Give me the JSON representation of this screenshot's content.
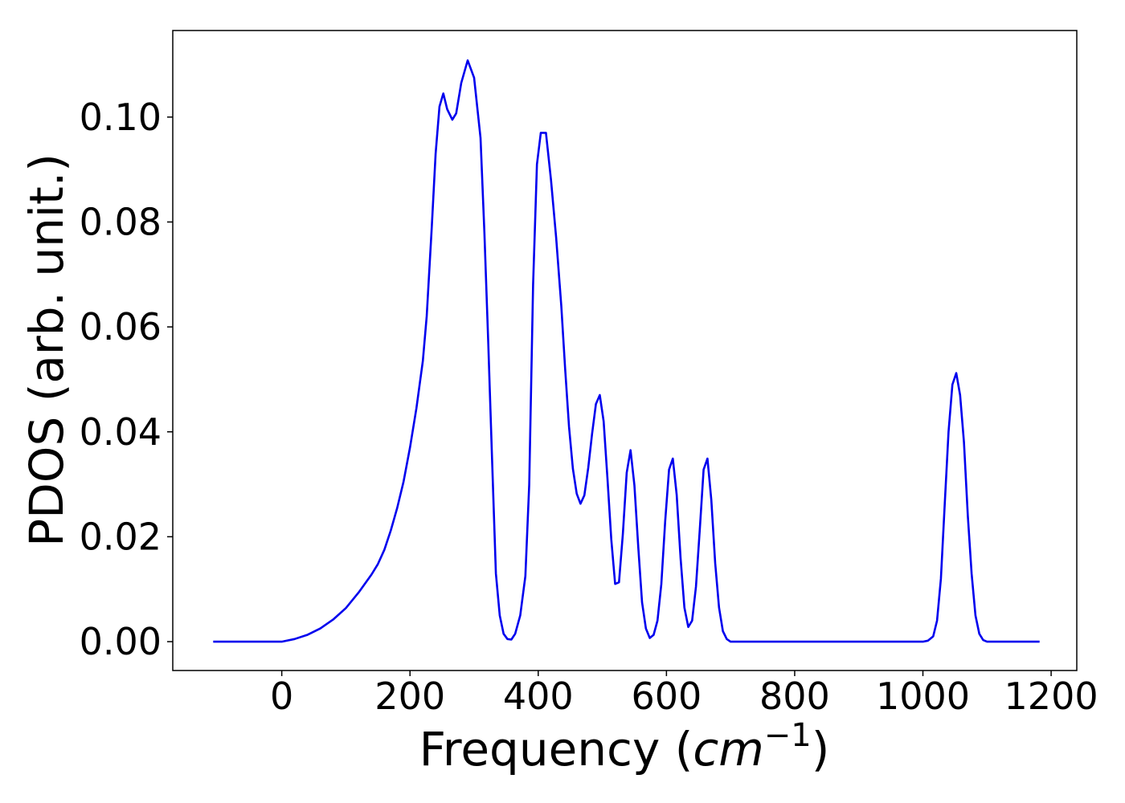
{
  "chart_data": {
    "type": "line",
    "xlabel": "Frequency (",
    "xlabel_math": "cm",
    "xlabel_sup": "−1",
    "xlabel_close": ")",
    "ylabel": "PDOS (arb. unit.)",
    "xlim": [
      -170,
      1240
    ],
    "ylim": [
      -0.0055,
      0.1165
    ],
    "xticks": [
      0,
      200,
      400,
      600,
      800,
      1000,
      1200
    ],
    "xtick_labels": [
      "0",
      "200",
      "400",
      "600",
      "800",
      "1000",
      "1200"
    ],
    "yticks": [
      0.0,
      0.02,
      0.04,
      0.06,
      0.08,
      0.1
    ],
    "ytick_labels": [
      "0.00",
      "0.02",
      "0.04",
      "0.06",
      "0.08",
      "0.10"
    ],
    "grid": false,
    "series": [
      {
        "color": "#0000ee",
        "x": [
          -107,
          0,
          20,
          40,
          60,
          80,
          100,
          120,
          140,
          150,
          160,
          170,
          180,
          190,
          200,
          210,
          220,
          226,
          234,
          240,
          246,
          252,
          258,
          266,
          272,
          280,
          290,
          300,
          310,
          316,
          322,
          328,
          334,
          340,
          346,
          352,
          358,
          364,
          372,
          380,
          386,
          392,
          398,
          404,
          412,
          420,
          428,
          436,
          442,
          448,
          454,
          460,
          466,
          472,
          478,
          484,
          490,
          496,
          502,
          508,
          514,
          520,
          526,
          532,
          538,
          544,
          550,
          556,
          562,
          568,
          574,
          580,
          586,
          592,
          598,
          604,
          610,
          616,
          622,
          628,
          634,
          640,
          646,
          652,
          658,
          664,
          670,
          676,
          682,
          688,
          694,
          700,
          720,
          800,
          900,
          1000,
          1008,
          1016,
          1022,
          1028,
          1034,
          1040,
          1046,
          1052,
          1058,
          1064,
          1070,
          1076,
          1082,
          1088,
          1094,
          1100,
          1120,
          1182
        ],
        "y": [
          0,
          0,
          0.0005,
          0.0013,
          0.0025,
          0.0042,
          0.0064,
          0.0094,
          0.0128,
          0.0148,
          0.0175,
          0.0212,
          0.0255,
          0.0305,
          0.037,
          0.0445,
          0.0535,
          0.062,
          0.079,
          0.093,
          0.102,
          0.1045,
          0.1015,
          0.0995,
          0.1007,
          0.1065,
          0.1108,
          0.1075,
          0.096,
          0.078,
          0.057,
          0.035,
          0.013,
          0.005,
          0.0015,
          0.0005,
          0.0004,
          0.0015,
          0.005,
          0.0125,
          0.03,
          0.068,
          0.091,
          0.097,
          0.097,
          0.088,
          0.077,
          0.064,
          0.052,
          0.041,
          0.033,
          0.0282,
          0.0263,
          0.0279,
          0.0331,
          0.0396,
          0.0453,
          0.047,
          0.042,
          0.031,
          0.0195,
          0.011,
          0.0113,
          0.0205,
          0.0322,
          0.0365,
          0.0298,
          0.018,
          0.0075,
          0.0025,
          0.0007,
          0.0013,
          0.004,
          0.011,
          0.023,
          0.0328,
          0.0349,
          0.028,
          0.016,
          0.0065,
          0.0028,
          0.004,
          0.0105,
          0.0215,
          0.0328,
          0.0349,
          0.027,
          0.015,
          0.0065,
          0.002,
          0.0005,
          0,
          0,
          0,
          0,
          0,
          0.0002,
          0.001,
          0.004,
          0.012,
          0.026,
          0.04,
          0.049,
          0.0512,
          0.047,
          0.038,
          0.024,
          0.013,
          0.005,
          0.0015,
          0.0003,
          0,
          0,
          0
        ]
      }
    ]
  }
}
